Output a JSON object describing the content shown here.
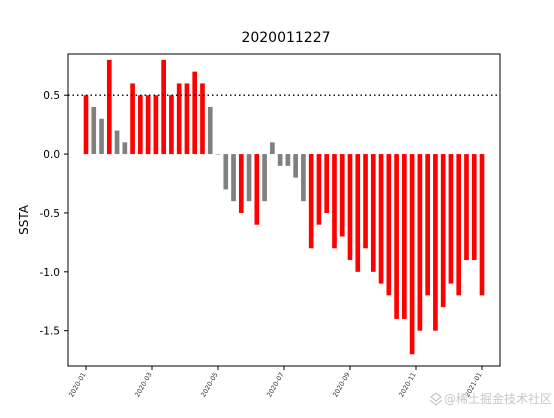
{
  "chart_data": {
    "type": "bar",
    "title": "2020011227",
    "xlabel": "",
    "ylabel": "SSTA",
    "ylim": [
      -1.8,
      0.85
    ],
    "yticks": [
      -1.5,
      -1.0,
      -0.5,
      0.0,
      0.5
    ],
    "ytick_labels": [
      "-1.5",
      "-1.0",
      "-0.5",
      "0.0",
      "0.5"
    ],
    "reference_line": {
      "y": 0.5,
      "style": "dotted",
      "color": "#000000"
    },
    "threshold": 0.5,
    "colors": {
      "above_threshold": "#ff0000",
      "within_threshold": "#808080"
    },
    "grid": false,
    "xtick_labels": [
      "2020-01",
      "2020-03",
      "2020-05",
      "2020-07",
      "2020-09",
      "2020-11",
      "2021-01"
    ],
    "values": [
      0.5,
      0.4,
      0.3,
      0.8,
      0.2,
      0.1,
      0.6,
      0.5,
      0.5,
      0.5,
      0.8,
      0.5,
      0.6,
      0.6,
      0.7,
      0.6,
      0.4,
      0.0,
      -0.3,
      -0.4,
      -0.5,
      -0.4,
      -0.6,
      -0.4,
      0.1,
      -0.1,
      -0.1,
      -0.2,
      -0.4,
      -0.8,
      -0.6,
      -0.5,
      -0.8,
      -0.7,
      -0.9,
      -1.0,
      -0.8,
      -1.0,
      -1.1,
      -1.2,
      -1.4,
      -1.4,
      -1.7,
      -1.5,
      -1.2,
      -1.5,
      -1.3,
      -1.1,
      -1.2,
      -0.9,
      -0.9,
      -1.2
    ]
  },
  "watermark": {
    "text": "@稀土掘金技术社区",
    "icon": "juejin-logo-icon"
  }
}
